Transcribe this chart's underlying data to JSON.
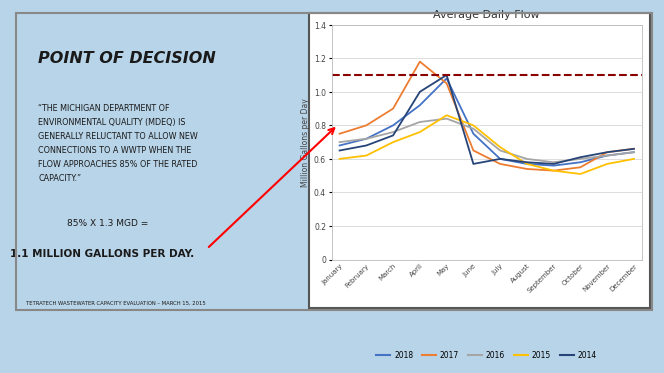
{
  "title": "Average Daily Flow",
  "ylabel": "Million Gallons per Day",
  "months": [
    "January",
    "February",
    "March",
    "April",
    "May",
    "June",
    "July",
    "August",
    "September",
    "October",
    "November",
    "December"
  ],
  "series": {
    "2018": [
      0.68,
      0.72,
      0.8,
      0.92,
      1.08,
      0.75,
      0.6,
      0.57,
      0.56,
      0.58,
      0.62,
      0.64
    ],
    "2017": [
      0.75,
      0.8,
      0.9,
      1.18,
      1.05,
      0.65,
      0.57,
      0.54,
      0.53,
      0.55,
      0.64,
      0.66
    ],
    "2016": [
      0.7,
      0.72,
      0.76,
      0.82,
      0.84,
      0.78,
      0.65,
      0.6,
      0.58,
      0.6,
      0.62,
      0.64
    ],
    "2015": [
      0.6,
      0.62,
      0.7,
      0.76,
      0.86,
      0.8,
      0.67,
      0.57,
      0.53,
      0.51,
      0.57,
      0.6
    ],
    "2014": [
      0.65,
      0.68,
      0.74,
      1.0,
      1.1,
      0.57,
      0.6,
      0.58,
      0.57,
      0.61,
      0.64,
      0.66
    ]
  },
  "colors": {
    "2018": "#4472C4",
    "2017": "#ED7D31",
    "2016": "#A5A5A5",
    "2015": "#FFC000",
    "2014": "#264478"
  },
  "threshold": 1.1,
  "threshold_color": "#8B0000",
  "ylim": [
    0,
    1.4
  ],
  "yticks": [
    0,
    0.2,
    0.4,
    0.6,
    0.8,
    1.0,
    1.2,
    1.4
  ],
  "bg_left": "#b8d4e8",
  "bg_chart": "#ffffff",
  "text_color": "#1a1a1a",
  "title_main": "POINT OF DECISION",
  "quote_text": "“THE MICHIGAN DEPARTMENT OF\nENVIRONMENTAL QUALITY (MDEQ) IS\nGENERALLY RELUCTANT TO ALLOW NEW\nCONNECTIONS TO A WWTP WHEN THE\nFLOW APPROACHES 85% OF THE RATED\nCAPACITY.”",
  "calc_text": "85% X 1.3 MGD =",
  "result_text": "1.1 MILLION GALLONS PER DAY.",
  "footer_text": "TETRATECH WASTEWATER CAPACITY EVALUATION – MARCH 15, 2015"
}
